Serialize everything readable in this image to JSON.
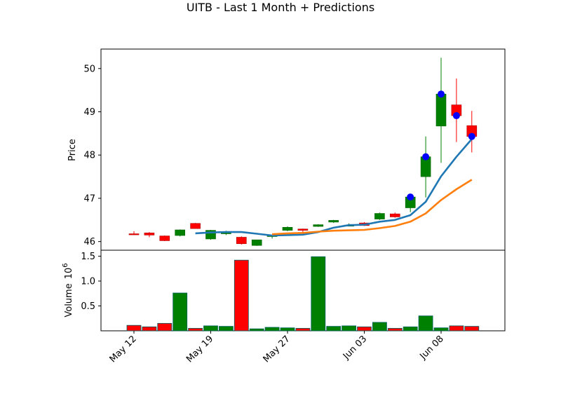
{
  "chart_data": {
    "type": "candlestick",
    "title": "UITB - Last 1 Month + Predictions",
    "price_panel": {
      "ylabel": "Price",
      "ylim": [
        45.8,
        50.45
      ],
      "yticks": [
        46,
        47,
        48,
        49,
        50
      ],
      "candles": [
        {
          "open": 46.18,
          "high": 46.24,
          "low": 46.15,
          "close": 46.17
        },
        {
          "open": 46.2,
          "high": 46.22,
          "low": 46.1,
          "close": 46.15
        },
        {
          "open": 46.13,
          "high": 46.14,
          "low": 46.01,
          "close": 46.02
        },
        {
          "open": 46.14,
          "high": 46.28,
          "low": 46.12,
          "close": 46.27
        },
        {
          "open": 46.42,
          "high": 46.43,
          "low": 46.3,
          "close": 46.3
        },
        {
          "open": 46.06,
          "high": 46.27,
          "low": 46.04,
          "close": 46.26
        },
        {
          "open": 46.18,
          "high": 46.25,
          "low": 46.15,
          "close": 46.22
        },
        {
          "open": 46.1,
          "high": 46.12,
          "low": 45.93,
          "close": 45.95
        },
        {
          "open": 45.91,
          "high": 46.04,
          "low": 45.9,
          "close": 46.04
        },
        {
          "open": 46.14,
          "high": 46.16,
          "low": 46.07,
          "close": 46.14
        },
        {
          "open": 46.26,
          "high": 46.35,
          "low": 46.24,
          "close": 46.33
        },
        {
          "open": 46.29,
          "high": 46.3,
          "low": 46.2,
          "close": 46.26
        },
        {
          "open": 46.35,
          "high": 46.4,
          "low": 46.34,
          "close": 46.39
        },
        {
          "open": 46.45,
          "high": 46.5,
          "low": 46.43,
          "close": 46.49
        },
        {
          "open": 46.38,
          "high": 46.42,
          "low": 46.36,
          "close": 46.38
        },
        {
          "open": 46.43,
          "high": 46.45,
          "low": 46.36,
          "close": 46.37
        },
        {
          "open": 46.52,
          "high": 46.67,
          "low": 46.5,
          "close": 46.65
        },
        {
          "open": 46.64,
          "high": 46.67,
          "low": 46.55,
          "close": 46.57
        },
        {
          "open": 46.78,
          "high": 47.07,
          "low": 46.68,
          "close": 47.03
        },
        {
          "open": 47.5,
          "high": 48.43,
          "low": 47.02,
          "close": 47.96
        },
        {
          "open": 48.67,
          "high": 50.25,
          "low": 47.82,
          "close": 49.41
        },
        {
          "open": 49.16,
          "high": 49.77,
          "low": 48.3,
          "close": 48.91
        },
        {
          "open": 48.68,
          "high": 49.02,
          "low": 48.06,
          "close": 48.43
        }
      ],
      "markers": [
        {
          "index": 18,
          "value": 47.03
        },
        {
          "index": 19,
          "value": 47.96
        },
        {
          "index": 20,
          "value": 49.41
        },
        {
          "index": 21,
          "value": 48.91
        },
        {
          "index": 22,
          "value": 48.43
        }
      ],
      "series": [
        {
          "color": "#1f77b4",
          "start_index": 4,
          "values": [
            46.19,
            46.21,
            46.22,
            46.22,
            46.18,
            46.14,
            46.15,
            46.16,
            46.22,
            46.32,
            46.38,
            46.39,
            46.46,
            46.5,
            46.61,
            46.92,
            47.51,
            47.96,
            48.37
          ]
        },
        {
          "color": "#ff7f0e",
          "start_index": 9,
          "values": [
            46.17,
            46.19,
            46.2,
            46.23,
            46.25,
            46.26,
            46.27,
            46.31,
            46.36,
            46.46,
            46.65,
            46.96,
            47.21,
            47.43
          ]
        }
      ]
    },
    "volume_panel": {
      "ylabel": "Volume",
      "scale_label": "10",
      "scale_exponent": "6",
      "ylim": [
        0,
        1.62
      ],
      "yticks": [
        "0.5",
        "1.0",
        "1.5"
      ],
      "ytick_values": [
        0.5,
        1.0,
        1.5
      ],
      "values": [
        0.11,
        0.08,
        0.15,
        0.76,
        0.05,
        0.1,
        0.09,
        1.42,
        0.04,
        0.07,
        0.06,
        0.05,
        1.49,
        0.09,
        0.1,
        0.08,
        0.17,
        0.05,
        0.08,
        0.3,
        0.06,
        0.1,
        0.09
      ]
    },
    "x_axis": {
      "ticks": [
        {
          "index": 0,
          "label": "May 12"
        },
        {
          "index": 5,
          "label": "May 19"
        },
        {
          "index": 10,
          "label": "May 27"
        },
        {
          "index": 15,
          "label": "Jun 03"
        },
        {
          "index": 20,
          "label": "Jun 08"
        }
      ]
    },
    "colors": {
      "up": "#008000",
      "down": "#ff0000",
      "marker": "#0000ff"
    }
  }
}
